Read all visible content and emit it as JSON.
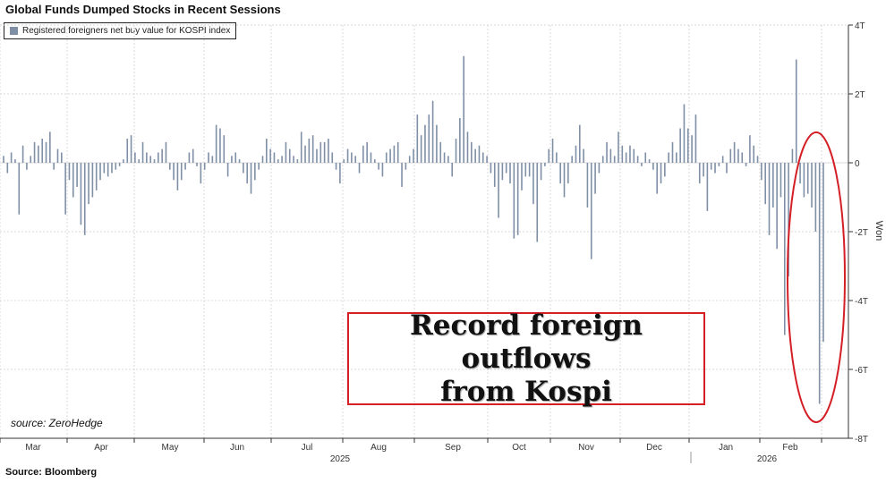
{
  "title": "Global Funds Dumped Stocks in Recent Sessions",
  "legend_label": "Registered foreigners net buy value for KOSPI index",
  "source_note": "Source:  Bloomberg",
  "watermark_source": "source: ZeroHedge",
  "annotation_text": "Record foreign outflows\nfrom Kospi",
  "colors": {
    "bar": "#7f8fa6",
    "highlight": "#d41f26",
    "grid": "#d9d9d9",
    "axis": "#333333"
  },
  "chart_data": {
    "type": "bar",
    "title": "Global Funds Dumped Stocks in Recent Sessions",
    "ylabel": "Won",
    "ylim": [
      -8,
      4
    ],
    "y_unit": "trillion won",
    "yticks": [
      4,
      2,
      0,
      -2,
      -4,
      -6,
      -8
    ],
    "ytick_labels": [
      "4T",
      "2T",
      "0",
      "-2T",
      "-4T",
      "-6T",
      "-8T"
    ],
    "grid": true,
    "legend_position": "top-left",
    "months": [
      "Mar",
      "Apr",
      "May",
      "Jun",
      "Jul",
      "Aug",
      "Sep",
      "Oct",
      "Nov",
      "Dec",
      "Jan",
      "Feb"
    ],
    "years": [
      "2025",
      "2026"
    ],
    "series": [
      {
        "name": "Registered foreigners net buy value for KOSPI index",
        "values": [
          0.2,
          -0.3,
          0.3,
          0.1,
          -1.5,
          0.5,
          -0.2,
          0.2,
          0.6,
          0.5,
          0.7,
          0.6,
          0.9,
          -0.2,
          0.4,
          0.3,
          -1.5,
          -0.5,
          -1.0,
          -0.7,
          -1.8,
          -2.1,
          -1.2,
          -1.0,
          -0.8,
          -0.5,
          -0.3,
          -0.4,
          -0.3,
          -0.2,
          -0.1,
          0.1,
          0.7,
          0.8,
          0.3,
          0.1,
          0.6,
          0.3,
          0.2,
          0.1,
          0.3,
          0.4,
          0.6,
          -0.2,
          -0.5,
          -0.8,
          -0.5,
          -0.2,
          0.3,
          0.4,
          -0.1,
          -0.6,
          -0.2,
          0.3,
          0.2,
          1.1,
          1.0,
          0.8,
          -0.4,
          0.2,
          0.3,
          0.1,
          -0.3,
          -0.6,
          -0.9,
          -0.5,
          -0.2,
          0.2,
          0.7,
          0.4,
          0.3,
          0.1,
          0.2,
          0.6,
          0.4,
          0.2,
          0.1,
          0.9,
          0.5,
          0.7,
          0.8,
          0.4,
          0.6,
          0.6,
          0.7,
          0.3,
          -0.2,
          -0.6,
          0.1,
          0.4,
          0.3,
          0.2,
          -0.3,
          0.5,
          0.6,
          0.3,
          0.1,
          -0.2,
          -0.4,
          0.3,
          0.4,
          0.5,
          0.6,
          -0.7,
          -0.2,
          0.2,
          0.4,
          1.4,
          0.8,
          1.1,
          1.4,
          1.8,
          1.1,
          0.6,
          0.3,
          0.2,
          -0.4,
          0.7,
          1.3,
          3.1,
          0.9,
          0.6,
          0.4,
          0.5,
          0.3,
          0.2,
          -0.3,
          -0.7,
          -1.6,
          -0.5,
          -0.3,
          -0.6,
          -2.2,
          -2.1,
          -0.8,
          -0.4,
          -0.4,
          -1.2,
          -2.3,
          -0.5,
          -0.1,
          0.4,
          0.7,
          0.3,
          -0.6,
          -1.0,
          -0.6,
          0.2,
          0.5,
          1.1,
          0.4,
          -1.3,
          -2.8,
          -0.9,
          -0.3,
          0.2,
          0.6,
          0.4,
          0.2,
          0.9,
          0.5,
          0.3,
          0.5,
          0.4,
          0.2,
          -0.1,
          0.3,
          0.1,
          -0.2,
          -0.9,
          -0.6,
          -0.4,
          0.3,
          0.6,
          0.3,
          1.0,
          1.7,
          1.0,
          0.8,
          1.4,
          -0.6,
          -0.4,
          -1.4,
          -0.2,
          -0.3,
          -0.1,
          0.2,
          -0.3,
          0.4,
          0.6,
          0.4,
          0.3,
          -0.1,
          0.8,
          0.5,
          0.2,
          -0.5,
          -1.2,
          -2.1,
          -1.3,
          -2.5,
          -1.0,
          -5.0,
          -3.3,
          0.4,
          3.0,
          -0.6,
          -1.0,
          -0.9,
          -1.3,
          -2.0,
          -7.0,
          -5.2
        ]
      }
    ]
  }
}
